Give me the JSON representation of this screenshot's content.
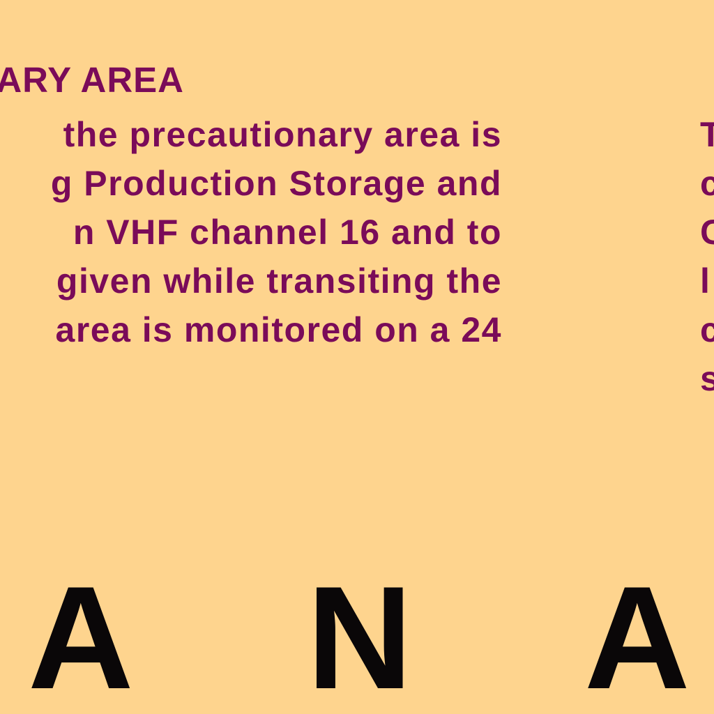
{
  "map": {
    "background": "#fed48e",
    "text_color": "#7a0b59",
    "name_color": "#0a0708",
    "note": {
      "heading": "ARY AREA",
      "lines": [
        "the precautionary area is",
        "g Production Storage and",
        "n VHF channel 16 and to",
        "given while transiting the",
        "area is monitored on a 24"
      ]
    },
    "right_column": {
      "lines": [
        "T",
        "c",
        "C",
        "l",
        "c",
        "s"
      ]
    },
    "area_name": {
      "letters": [
        "A",
        "N",
        "A"
      ]
    }
  }
}
